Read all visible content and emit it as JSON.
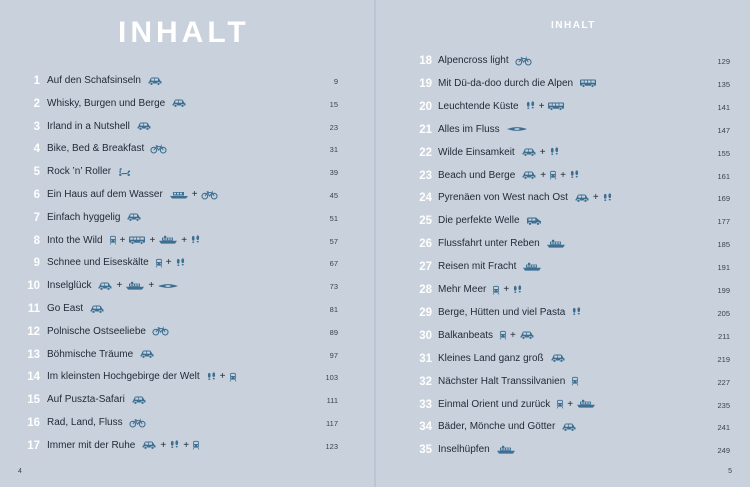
{
  "left": {
    "title": "INHALT",
    "folio": "4",
    "entries": [
      {
        "num": "1",
        "title": "Auf den Schafsinseln",
        "icons": [
          "car"
        ],
        "page": "9"
      },
      {
        "num": "2",
        "title": "Whisky, Burgen und Berge",
        "icons": [
          "car"
        ],
        "page": "15"
      },
      {
        "num": "3",
        "title": "Irland in a Nutshell",
        "icons": [
          "car"
        ],
        "page": "23"
      },
      {
        "num": "4",
        "title": "Bike, Bed & Breakfast",
        "icons": [
          "bike"
        ],
        "page": "31"
      },
      {
        "num": "5",
        "title": "Rock ’n’ Roller",
        "icons": [
          "scooter"
        ],
        "page": "39"
      },
      {
        "num": "6",
        "title": "Ein Haus auf dem Wasser",
        "icons": [
          "boat",
          "bike"
        ],
        "page": "45"
      },
      {
        "num": "7",
        "title": "Einfach hyggelig",
        "icons": [
          "car"
        ],
        "page": "51"
      },
      {
        "num": "8",
        "title": "Into the Wild",
        "icons": [
          "train",
          "bus",
          "ship",
          "feet"
        ],
        "page": "57"
      },
      {
        "num": "9",
        "title": "Schnee und Eiseskälte",
        "icons": [
          "train",
          "feet"
        ],
        "page": "67"
      },
      {
        "num": "10",
        "title": "Inselglück",
        "icons": [
          "car",
          "ship",
          "kayak"
        ],
        "page": "73"
      },
      {
        "num": "11",
        "title": "Go East",
        "icons": [
          "car"
        ],
        "page": "81"
      },
      {
        "num": "12",
        "title": "Polnische Ostseeliebe",
        "icons": [
          "bike"
        ],
        "page": "89"
      },
      {
        "num": "13",
        "title": "Böhmische Träume",
        "icons": [
          "car"
        ],
        "page": "97"
      },
      {
        "num": "14",
        "title": "Im kleinsten Hochgebirge der Welt",
        "icons": [
          "feet",
          "train"
        ],
        "page": "103"
      },
      {
        "num": "15",
        "title": "Auf Puszta-Safari",
        "icons": [
          "car"
        ],
        "page": "111"
      },
      {
        "num": "16",
        "title": "Rad, Land, Fluss",
        "icons": [
          "bike"
        ],
        "page": "117"
      },
      {
        "num": "17",
        "title": "Immer mit der Ruhe",
        "icons": [
          "car",
          "feet",
          "train"
        ],
        "page": "123"
      }
    ]
  },
  "right": {
    "title": "INHALT",
    "folio": "5",
    "entries": [
      {
        "num": "18",
        "title": "Alpencross light",
        "icons": [
          "bike"
        ],
        "page": "129"
      },
      {
        "num": "19",
        "title": "Mit Dü-da-doo durch die Alpen",
        "icons": [
          "bus"
        ],
        "page": "135"
      },
      {
        "num": "20",
        "title": "Leuchtende Küste",
        "icons": [
          "feet",
          "bus"
        ],
        "page": "141"
      },
      {
        "num": "21",
        "title": "Alles im Fluss",
        "icons": [
          "kayak"
        ],
        "page": "147"
      },
      {
        "num": "22",
        "title": "Wilde Einsamkeit",
        "icons": [
          "car",
          "feet"
        ],
        "page": "155"
      },
      {
        "num": "23",
        "title": "Beach und Berge",
        "icons": [
          "car",
          "train",
          "feet"
        ],
        "page": "161"
      },
      {
        "num": "24",
        "title": "Pyrenäen von West nach Ost",
        "icons": [
          "car",
          "feet"
        ],
        "page": "169"
      },
      {
        "num": "25",
        "title": "Die perfekte Welle",
        "icons": [
          "van"
        ],
        "page": "177"
      },
      {
        "num": "26",
        "title": "Flussfahrt unter Reben",
        "icons": [
          "ship"
        ],
        "page": "185"
      },
      {
        "num": "27",
        "title": "Reisen mit Fracht",
        "icons": [
          "ship"
        ],
        "page": "191"
      },
      {
        "num": "28",
        "title": "Mehr Meer",
        "icons": [
          "train",
          "feet"
        ],
        "page": "199"
      },
      {
        "num": "29",
        "title": "Berge, Hütten und viel Pasta",
        "icons": [
          "feet"
        ],
        "page": "205"
      },
      {
        "num": "30",
        "title": "Balkanbeats",
        "icons": [
          "train",
          "car"
        ],
        "page": "211"
      },
      {
        "num": "31",
        "title": "Kleines Land ganz groß",
        "icons": [
          "car"
        ],
        "page": "219"
      },
      {
        "num": "32",
        "title": "Nächster Halt Transsilvanien",
        "icons": [
          "train"
        ],
        "page": "227"
      },
      {
        "num": "33",
        "title": "Einmal Orient und zurück",
        "icons": [
          "train",
          "ship"
        ],
        "page": "235"
      },
      {
        "num": "34",
        "title": "Bäder, Mönche und Götter",
        "icons": [
          "car"
        ],
        "page": "241"
      },
      {
        "num": "35",
        "title": "Inselhüpfen",
        "icons": [
          "ship"
        ],
        "page": "249"
      }
    ]
  },
  "colors": {
    "background": "#c9d1dc",
    "number": "#ffffff",
    "icon": "#3d6f92",
    "text": "#1f2a36"
  }
}
